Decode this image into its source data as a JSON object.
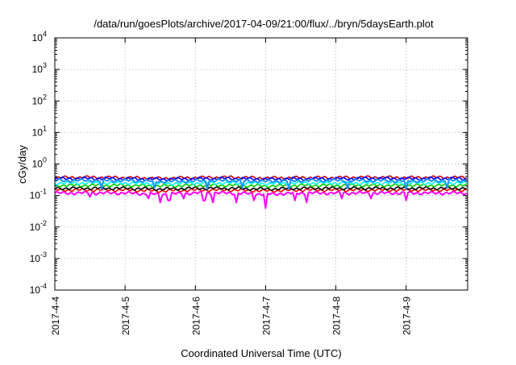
{
  "chart_data": {
    "type": "line",
    "title": "/data/run/goesPlots/archive/2017-04-09/21:00/flux/../bryn/5daysEarth.plot",
    "xlabel": "Coordinated Universal Time (UTC)",
    "ylabel": "cGy/day",
    "y_scale": "log",
    "ylim": [
      0.0001,
      10000
    ],
    "xlim": [
      "2017-04-04 00:00",
      "2017-04-09 21:00"
    ],
    "grid": true,
    "legend": "none",
    "y_ticks": [
      {
        "value": 0.0001,
        "base": "10",
        "exp": "-4"
      },
      {
        "value": 0.001,
        "base": "10",
        "exp": "-3"
      },
      {
        "value": 0.01,
        "base": "10",
        "exp": "-2"
      },
      {
        "value": 0.1,
        "base": "10",
        "exp": "-1"
      },
      {
        "value": 1,
        "base": "10",
        "exp": "0"
      },
      {
        "value": 10,
        "base": "10",
        "exp": "1"
      },
      {
        "value": 100,
        "base": "10",
        "exp": "2"
      },
      {
        "value": 1000,
        "base": "10",
        "exp": "3"
      },
      {
        "value": 10000,
        "base": "10",
        "exp": "4"
      }
    ],
    "x_ticks": [
      {
        "value": "2017-04-04",
        "label": "2017-4-4"
      },
      {
        "value": "2017-04-05",
        "label": "2017-4-5"
      },
      {
        "value": "2017-04-06",
        "label": "2017-4-6"
      },
      {
        "value": "2017-04-07",
        "label": "2017-4-7"
      },
      {
        "value": "2017-04-08",
        "label": "2017-4-8"
      },
      {
        "value": "2017-04-09",
        "label": "2017-4-9"
      }
    ],
    "series": [
      {
        "color": "#ff00ff",
        "points": [
          [
            "2017-04-04 00:00",
            0.12
          ],
          [
            "2017-04-04 12:00",
            0.12
          ],
          [
            "2017-04-05 00:00",
            0.12
          ],
          [
            "2017-04-05 12:00",
            0.11
          ],
          [
            "2017-04-06 00:00",
            0.12
          ],
          [
            "2017-04-06 12:00",
            0.12
          ],
          [
            "2017-04-07 00:00",
            0.11
          ],
          [
            "2017-04-07 12:00",
            0.12
          ],
          [
            "2017-04-08 00:00",
            0.12
          ],
          [
            "2017-04-08 12:00",
            0.12
          ],
          [
            "2017-04-09 00:00",
            0.12
          ],
          [
            "2017-04-09 12:00",
            0.12
          ],
          [
            "2017-04-09 21:00",
            0.12
          ]
        ],
        "dips": [
          [
            "2017-04-04 12:00",
            0.09
          ],
          [
            "2017-04-05 08:00",
            0.08
          ],
          [
            "2017-04-05 12:00",
            0.06
          ],
          [
            "2017-04-05 15:00",
            0.07
          ],
          [
            "2017-04-05 20:00",
            0.08
          ],
          [
            "2017-04-06 03:00",
            0.07
          ],
          [
            "2017-04-06 06:00",
            0.06
          ],
          [
            "2017-04-06 14:00",
            0.06
          ],
          [
            "2017-04-06 20:00",
            0.07
          ],
          [
            "2017-04-07 00:00",
            0.04
          ],
          [
            "2017-04-07 10:00",
            0.07
          ],
          [
            "2017-04-07 14:00",
            0.06
          ],
          [
            "2017-04-08 02:00",
            0.08
          ],
          [
            "2017-04-08 12:00",
            0.08
          ],
          [
            "2017-04-09 00:00",
            0.07
          ]
        ]
      },
      {
        "color": "#ff0000",
        "points": [
          [
            "2017-04-04 00:00",
            0.15
          ],
          [
            "2017-04-04 12:00",
            0.15
          ],
          [
            "2017-04-05 00:00",
            0.15
          ],
          [
            "2017-04-05 12:00",
            0.14
          ],
          [
            "2017-04-06 00:00",
            0.15
          ],
          [
            "2017-04-06 12:00",
            0.15
          ],
          [
            "2017-04-07 00:00",
            0.14
          ],
          [
            "2017-04-07 12:00",
            0.15
          ],
          [
            "2017-04-08 00:00",
            0.15
          ],
          [
            "2017-04-08 12:00",
            0.15
          ],
          [
            "2017-04-09 00:00",
            0.15
          ],
          [
            "2017-04-09 12:00",
            0.15
          ],
          [
            "2017-04-09 21:00",
            0.15
          ]
        ]
      },
      {
        "color": "#000000",
        "points": [
          [
            "2017-04-04 00:00",
            0.17
          ],
          [
            "2017-04-04 12:00",
            0.17
          ],
          [
            "2017-04-05 00:00",
            0.17
          ],
          [
            "2017-04-05 12:00",
            0.16
          ],
          [
            "2017-04-06 00:00",
            0.17
          ],
          [
            "2017-04-06 12:00",
            0.17
          ],
          [
            "2017-04-07 00:00",
            0.16
          ],
          [
            "2017-04-07 12:00",
            0.17
          ],
          [
            "2017-04-08 00:00",
            0.17
          ],
          [
            "2017-04-08 12:00",
            0.17
          ],
          [
            "2017-04-09 00:00",
            0.17
          ],
          [
            "2017-04-09 12:00",
            0.17
          ],
          [
            "2017-04-09 21:00",
            0.17
          ]
        ]
      },
      {
        "color": "#00cc00",
        "points": [
          [
            "2017-04-04 00:00",
            0.21
          ],
          [
            "2017-04-04 12:00",
            0.21
          ],
          [
            "2017-04-05 00:00",
            0.21
          ],
          [
            "2017-04-05 12:00",
            0.2
          ],
          [
            "2017-04-06 00:00",
            0.21
          ],
          [
            "2017-04-06 12:00",
            0.21
          ],
          [
            "2017-04-07 00:00",
            0.2
          ],
          [
            "2017-04-07 12:00",
            0.21
          ],
          [
            "2017-04-08 00:00",
            0.21
          ],
          [
            "2017-04-08 12:00",
            0.21
          ],
          [
            "2017-04-09 00:00",
            0.21
          ],
          [
            "2017-04-09 12:00",
            0.21
          ],
          [
            "2017-04-09 21:00",
            0.21
          ]
        ]
      },
      {
        "color": "#00ffff",
        "points": [
          [
            "2017-04-04 00:00",
            0.25
          ],
          [
            "2017-04-04 12:00",
            0.25
          ],
          [
            "2017-04-05 00:00",
            0.25
          ],
          [
            "2017-04-05 12:00",
            0.24
          ],
          [
            "2017-04-06 00:00",
            0.25
          ],
          [
            "2017-04-06 12:00",
            0.25
          ],
          [
            "2017-04-07 00:00",
            0.24
          ],
          [
            "2017-04-07 12:00",
            0.25
          ],
          [
            "2017-04-08 00:00",
            0.25
          ],
          [
            "2017-04-08 12:00",
            0.25
          ],
          [
            "2017-04-09 00:00",
            0.25
          ],
          [
            "2017-04-09 12:00",
            0.25
          ],
          [
            "2017-04-09 21:00",
            0.25
          ]
        ]
      },
      {
        "color": "#cc0000",
        "points": [
          [
            "2017-04-04 00:00",
            0.37
          ],
          [
            "2017-04-04 12:00",
            0.38
          ],
          [
            "2017-04-05 00:00",
            0.37
          ],
          [
            "2017-04-05 12:00",
            0.35
          ],
          [
            "2017-04-06 00:00",
            0.37
          ],
          [
            "2017-04-06 12:00",
            0.38
          ],
          [
            "2017-04-07 00:00",
            0.36
          ],
          [
            "2017-04-07 12:00",
            0.37
          ],
          [
            "2017-04-08 00:00",
            0.37
          ],
          [
            "2017-04-08 12:00",
            0.38
          ],
          [
            "2017-04-09 00:00",
            0.37
          ],
          [
            "2017-04-09 12:00",
            0.38
          ],
          [
            "2017-04-09 21:00",
            0.37
          ]
        ]
      },
      {
        "color": "#0000ff",
        "points": [
          [
            "2017-04-04 00:00",
            0.34
          ],
          [
            "2017-04-04 12:00",
            0.35
          ],
          [
            "2017-04-05 00:00",
            0.34
          ],
          [
            "2017-04-05 12:00",
            0.33
          ],
          [
            "2017-04-06 00:00",
            0.34
          ],
          [
            "2017-04-06 12:00",
            0.35
          ],
          [
            "2017-04-07 00:00",
            0.33
          ],
          [
            "2017-04-07 12:00",
            0.34
          ],
          [
            "2017-04-08 00:00",
            0.34
          ],
          [
            "2017-04-08 12:00",
            0.35
          ],
          [
            "2017-04-09 00:00",
            0.34
          ],
          [
            "2017-04-09 12:00",
            0.35
          ],
          [
            "2017-04-09 21:00",
            0.34
          ]
        ]
      },
      {
        "color": "#1e90ff",
        "points": [
          [
            "2017-04-04 00:00",
            0.3
          ],
          [
            "2017-04-04 12:00",
            0.3
          ],
          [
            "2017-04-05 00:00",
            0.3
          ],
          [
            "2017-04-05 12:00",
            0.28
          ],
          [
            "2017-04-06 00:00",
            0.29
          ],
          [
            "2017-04-06 12:00",
            0.3
          ],
          [
            "2017-04-07 00:00",
            0.28
          ],
          [
            "2017-04-07 12:00",
            0.3
          ],
          [
            "2017-04-08 00:00",
            0.3
          ],
          [
            "2017-04-08 12:00",
            0.3
          ],
          [
            "2017-04-09 00:00",
            0.29
          ],
          [
            "2017-04-09 12:00",
            0.3
          ],
          [
            "2017-04-09 21:00",
            0.3
          ]
        ],
        "dips": [
          [
            "2017-04-04 16:00",
            0.16
          ],
          [
            "2017-04-05 10:00",
            0.17
          ],
          [
            "2017-04-06 04:00",
            0.16
          ],
          [
            "2017-04-06 16:00",
            0.17
          ],
          [
            "2017-04-07 08:00",
            0.16
          ],
          [
            "2017-04-08 04:00",
            0.17
          ],
          [
            "2017-04-09 00:00",
            0.16
          ],
          [
            "2017-04-09 14:00",
            0.17
          ]
        ]
      }
    ]
  }
}
